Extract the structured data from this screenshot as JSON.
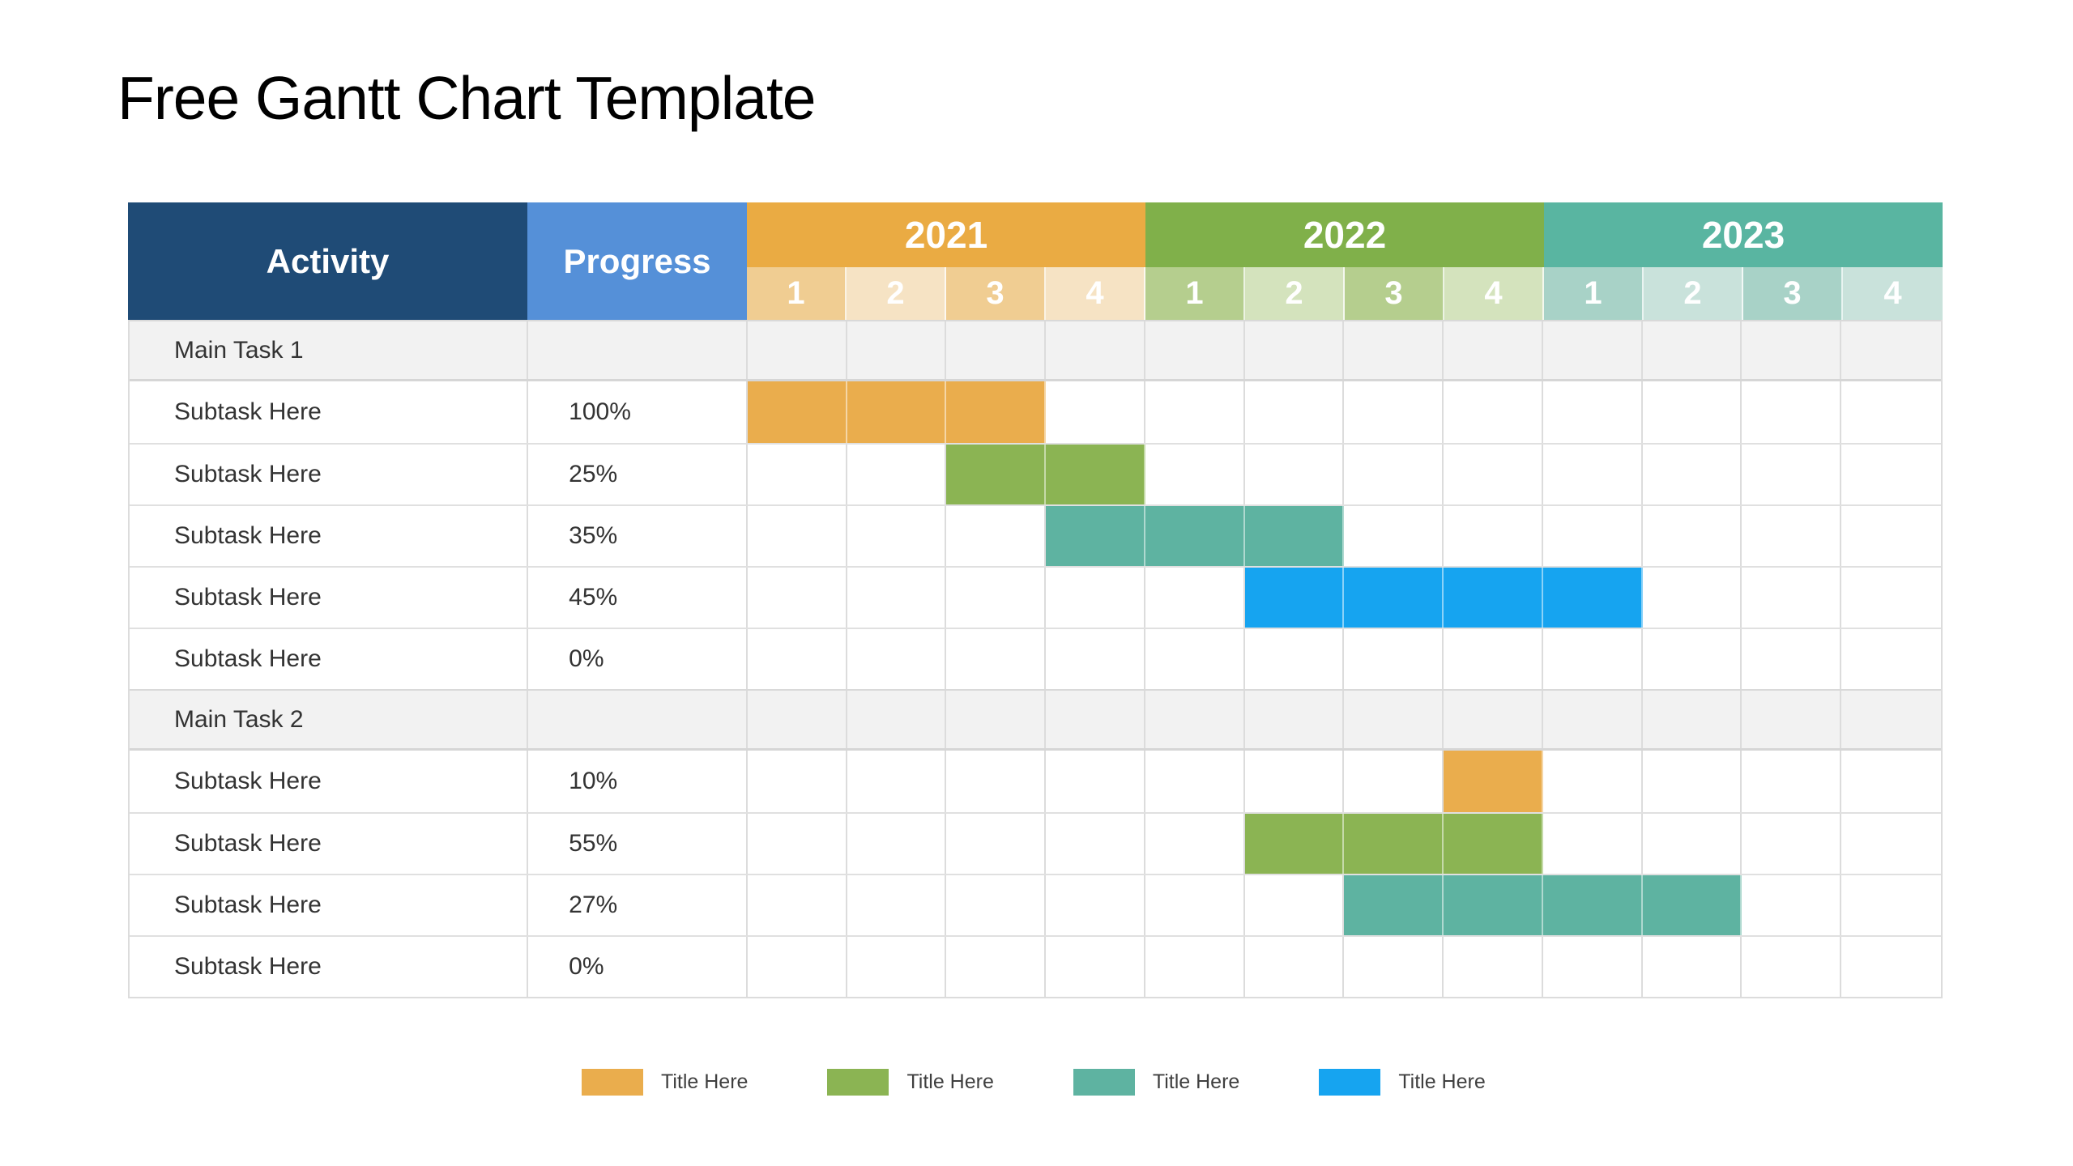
{
  "title": "Free Gantt Chart Template",
  "colors": {
    "header_activity_bg": "#1F4B76",
    "header_progress_bg": "#5590D8",
    "grid_line": "#DCDCDC",
    "group_row_bg": "#F2F2F2",
    "body_text": "#333333"
  },
  "table": {
    "activity_header": "Activity",
    "progress_header": "Progress",
    "quarter_labels": [
      "1",
      "2",
      "3",
      "4"
    ],
    "years": [
      {
        "label": "2021",
        "band_color": "#EAAB43",
        "quarter_tint_odd": "#F0CD92",
        "quarter_tint_even": "#F6E3C4"
      },
      {
        "label": "2022",
        "band_color": "#80B04A",
        "quarter_tint_odd": "#B5CE8E",
        "quarter_tint_even": "#D4E3BD"
      },
      {
        "label": "2023",
        "band_color": "#59B5A1",
        "quarter_tint_odd": "#A8D2C7",
        "quarter_tint_even": "#C9E2DB"
      }
    ]
  },
  "chart_data": {
    "type": "gantt",
    "title": "Free Gantt Chart Template",
    "time_axis": {
      "years": [
        "2021",
        "2022",
        "2023"
      ],
      "quarters_per_year": 4,
      "quarter_labels": [
        "1",
        "2",
        "3",
        "4"
      ]
    },
    "columns": [
      "Activity",
      "Progress"
    ],
    "tasks": [
      {
        "activity": "Main Task 1",
        "is_group": true,
        "progress": "",
        "bar": null
      },
      {
        "activity": "Subtask Here",
        "is_group": false,
        "progress": "100%",
        "bar": {
          "start_quarter": "2021 Q1",
          "end_quarter": "2021 Q3",
          "color": "#EAAD4D"
        }
      },
      {
        "activity": "Subtask Here",
        "is_group": false,
        "progress": "25%",
        "bar": {
          "start_quarter": "2021 Q3",
          "end_quarter": "2021 Q4",
          "color": "#8BB453"
        }
      },
      {
        "activity": "Subtask Here",
        "is_group": false,
        "progress": "35%",
        "bar": {
          "start_quarter": "2021 Q4",
          "end_quarter": "2022 Q2",
          "color": "#5EB3A1"
        }
      },
      {
        "activity": "Subtask Here",
        "is_group": false,
        "progress": "45%",
        "bar": {
          "start_quarter": "2022 Q2",
          "end_quarter": "2023 Q1",
          "color": "#16A4F0"
        }
      },
      {
        "activity": "Subtask Here",
        "is_group": false,
        "progress": "0%",
        "bar": null
      },
      {
        "activity": "Main Task 2",
        "is_group": true,
        "progress": "",
        "bar": null
      },
      {
        "activity": "Subtask Here",
        "is_group": false,
        "progress": "10%",
        "bar": {
          "start_quarter": "2022 Q4",
          "end_quarter": "2022 Q4",
          "color": "#EAAD4D"
        }
      },
      {
        "activity": "Subtask Here",
        "is_group": false,
        "progress": "55%",
        "bar": {
          "start_quarter": "2022 Q2",
          "end_quarter": "2022 Q4",
          "color": "#8BB453"
        }
      },
      {
        "activity": "Subtask Here",
        "is_group": false,
        "progress": "27%",
        "bar": {
          "start_quarter": "2022 Q3",
          "end_quarter": "2023 Q2",
          "color": "#5EB3A1"
        }
      },
      {
        "activity": "Subtask Here",
        "is_group": false,
        "progress": "0%",
        "bar": null
      }
    ],
    "legend_position": "bottom"
  },
  "legend": [
    {
      "label": "Title Here",
      "color": "#EAAD4D"
    },
    {
      "label": "Title Here",
      "color": "#8BB453"
    },
    {
      "label": "Title Here",
      "color": "#5EB3A1"
    },
    {
      "label": "Title Here",
      "color": "#16A4F0"
    }
  ]
}
